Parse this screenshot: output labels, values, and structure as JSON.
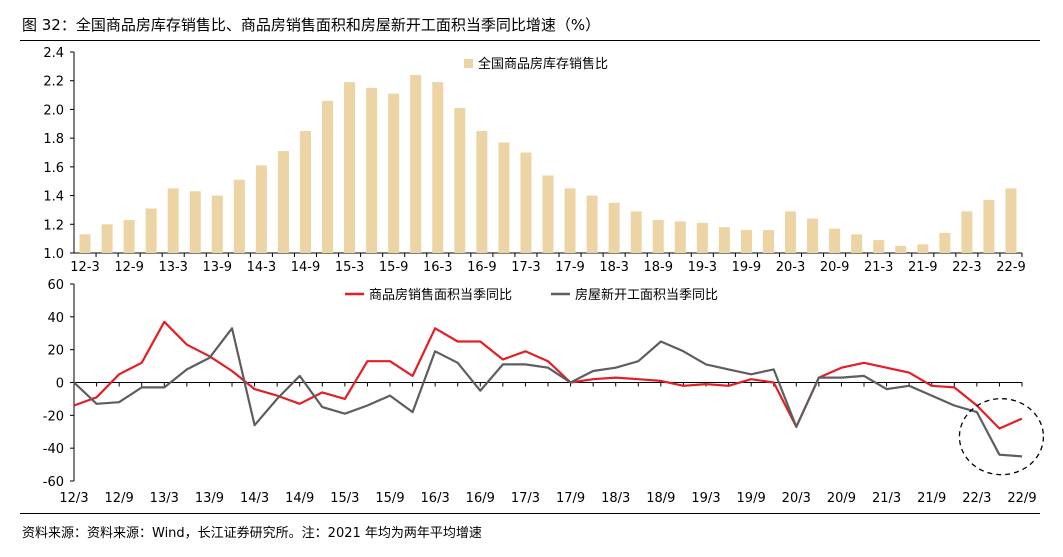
{
  "title": "图 32：全国商品房库存销售比、商品房销售面积和房屋新开工面积当季同比增速（%）",
  "footnote": "资料来源：资料来源：Wind，长江证券研究所。注：2021 年均为两年平均增速",
  "colors": {
    "bar": "#ecd4a4",
    "sales": "#e31f26",
    "starts": "#5e5e5e",
    "axis": "#000000"
  },
  "chart_data": [
    {
      "type": "bar",
      "categories": [
        "12-3",
        "12-6",
        "12-9",
        "12-12",
        "13-3",
        "13-6",
        "13-9",
        "13-12",
        "14-3",
        "14-6",
        "14-9",
        "14-12",
        "15-3",
        "15-6",
        "15-9",
        "15-12",
        "16-3",
        "16-6",
        "16-9",
        "16-12",
        "17-3",
        "17-6",
        "17-9",
        "17-12",
        "18-3",
        "18-6",
        "18-9",
        "18-12",
        "19-3",
        "19-6",
        "19-9",
        "19-12",
        "20-3",
        "20-6",
        "20-9",
        "20-12",
        "21-3",
        "21-6",
        "21-9",
        "21-12",
        "22-3",
        "22-6",
        "22-9"
      ],
      "tick_labels": [
        "12-3",
        "12-9",
        "13-3",
        "13-9",
        "14-3",
        "14-9",
        "15-3",
        "15-9",
        "16-3",
        "16-9",
        "17-3",
        "17-9",
        "18-3",
        "18-9",
        "19-3",
        "19-9",
        "20-3",
        "20-9",
        "21-3",
        "21-9",
        "22-3",
        "22-9"
      ],
      "series": [
        {
          "name": "全国商品房库存销售比",
          "values": [
            1.13,
            1.2,
            1.23,
            1.31,
            1.45,
            1.43,
            1.4,
            1.51,
            1.61,
            1.71,
            1.85,
            2.06,
            2.19,
            2.15,
            2.11,
            2.24,
            2.19,
            2.01,
            1.85,
            1.77,
            1.7,
            1.54,
            1.45,
            1.4,
            1.35,
            1.29,
            1.23,
            1.22,
            1.21,
            1.18,
            1.16,
            1.16,
            1.29,
            1.24,
            1.17,
            1.13,
            1.09,
            1.05,
            1.06,
            1.14,
            1.29,
            1.37,
            1.45
          ]
        }
      ],
      "yticks": [
        "1.0",
        "1.2",
        "1.4",
        "1.6",
        "1.8",
        "2.0",
        "2.2",
        "2.4"
      ],
      "ylim": [
        1.0,
        2.4
      ],
      "legend_position": "top"
    },
    {
      "type": "line",
      "categories": [
        "12/3",
        "12/6",
        "12/9",
        "12/12",
        "13/3",
        "13/6",
        "13/9",
        "13/12",
        "14/3",
        "14/6",
        "14/9",
        "14/12",
        "15/3",
        "15/6",
        "15/9",
        "15/12",
        "16/3",
        "16/6",
        "16/9",
        "16/12",
        "17/3",
        "17/6",
        "17/9",
        "17/12",
        "18/3",
        "18/6",
        "18/9",
        "18/12",
        "19/3",
        "19/6",
        "19/9",
        "19/12",
        "20/3",
        "20/6",
        "20/9",
        "20/12",
        "21/3",
        "21/6",
        "21/9",
        "21/12",
        "22/3",
        "22/6",
        "22/9"
      ],
      "tick_labels": [
        "12/3",
        "12/9",
        "13/3",
        "13/9",
        "14/3",
        "14/9",
        "15/3",
        "15/9",
        "16/3",
        "16/9",
        "17/3",
        "17/9",
        "18/3",
        "18/9",
        "19/3",
        "19/9",
        "20/3",
        "20/9",
        "21/3",
        "21/9",
        "22/3",
        "22/9"
      ],
      "series": [
        {
          "name": "商品房销售面积当季同比",
          "color_key": "sales",
          "values": [
            -14,
            -9,
            5,
            12,
            37,
            23,
            16,
            7,
            -4,
            -8,
            -13,
            -6,
            -10,
            13,
            13,
            4,
            33,
            25,
            25,
            14,
            19,
            13,
            0,
            2,
            3,
            2,
            1,
            -2,
            -1,
            -2,
            2,
            0,
            -27,
            3,
            9,
            12,
            9,
            6,
            -2,
            -3,
            -14,
            -28,
            -22
          ]
        },
        {
          "name": "房屋新开工面积当季同比",
          "color_key": "starts",
          "values": [
            0,
            -13,
            -12,
            -3,
            -3,
            8,
            15,
            33,
            -26,
            -10,
            4,
            -15,
            -19,
            -14,
            -8,
            -18,
            19,
            12,
            -5,
            11,
            11,
            9,
            0,
            7,
            9,
            13,
            25,
            19,
            11,
            8,
            5,
            8,
            -27,
            3,
            3,
            4,
            -4,
            -2,
            -8,
            -14,
            -18,
            -44,
            -45
          ]
        }
      ],
      "yticks": [
        "-60",
        "-40",
        "-20",
        "0",
        "20",
        "40",
        "60"
      ],
      "ylim": [
        -60,
        60
      ],
      "legend_position": "top",
      "annotation": "dashed circle around the last three points"
    }
  ]
}
